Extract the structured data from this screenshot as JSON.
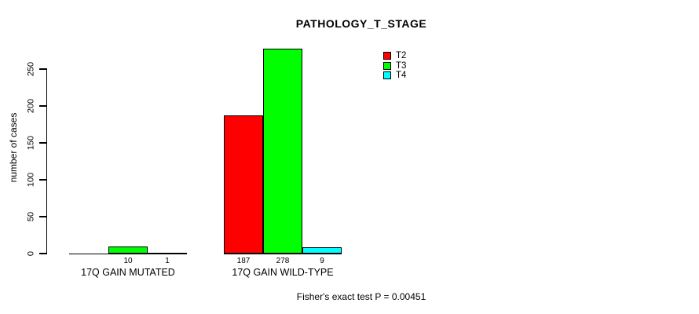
{
  "window": {
    "background_color": "#ffffff"
  },
  "chart_data": {
    "type": "bar",
    "title": "PATHOLOGY_T_STAGE",
    "xlabel": "",
    "ylabel": "number of cases",
    "ylim": [
      0,
      280
    ],
    "yticks": [
      0,
      50,
      100,
      150,
      200,
      250
    ],
    "grid": false,
    "legend_position": "right-outside-top",
    "categories": [
      "17Q GAIN MUTATED",
      "17Q GAIN WILD-TYPE"
    ],
    "series": [
      {
        "name": "T2",
        "color": "#ff0000",
        "values": [
          0,
          187
        ]
      },
      {
        "name": "T3",
        "color": "#00ff00",
        "values": [
          10,
          278
        ]
      },
      {
        "name": "T4",
        "color": "#00ffff",
        "values": [
          1,
          9
        ]
      }
    ],
    "bar_value_labels": [
      [
        "",
        "10",
        "1"
      ],
      [
        "187",
        "278",
        "9"
      ]
    ],
    "annotation": "Fisher's exact test P = 0.00451"
  },
  "legend": {
    "items": [
      {
        "label": "T2",
        "color": "#ff0000"
      },
      {
        "label": "T3",
        "color": "#00ff00"
      },
      {
        "label": "T4",
        "color": "#00ffff"
      }
    ]
  },
  "footer": {
    "text": "Fisher's exact test P = 0.00451"
  }
}
